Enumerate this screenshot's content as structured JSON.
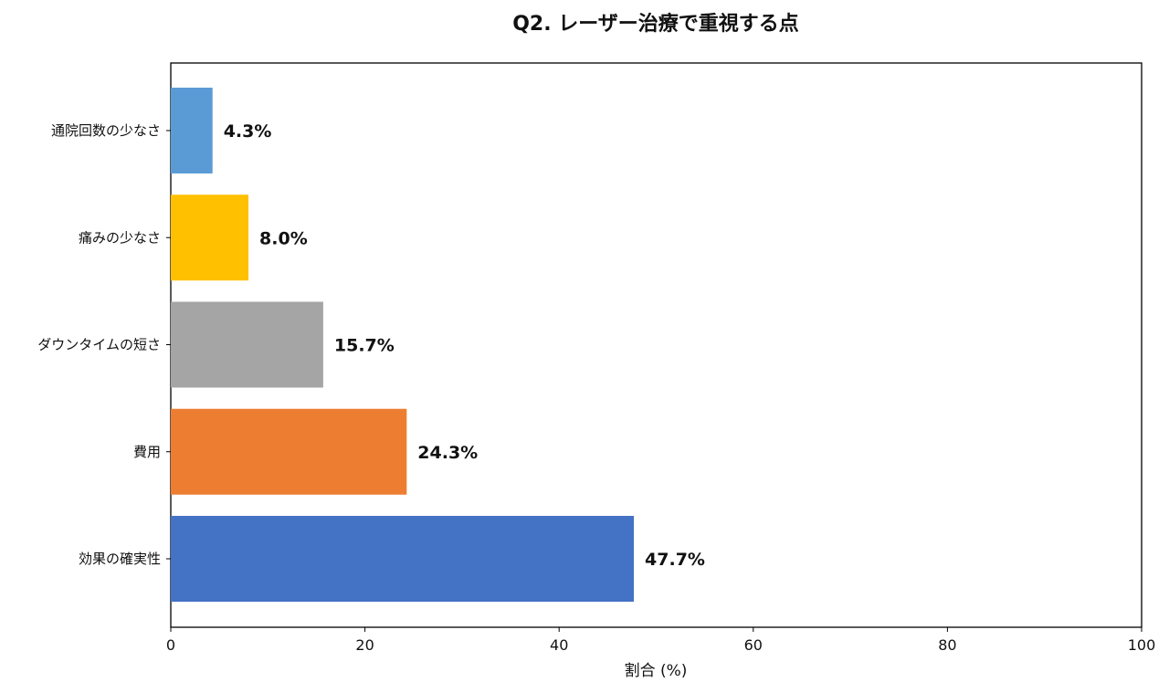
{
  "chart_data": {
    "type": "bar",
    "orientation": "horizontal",
    "title": "Q2. レーザー治療で重視する点",
    "xlabel": "割合 (%)",
    "ylabel": "",
    "xlim": [
      0,
      100
    ],
    "xticks": [
      0,
      20,
      40,
      60,
      80,
      100
    ],
    "xtick_labels": [
      "0",
      "20",
      "40",
      "60",
      "80",
      "100"
    ],
    "grid": false,
    "legend": "none",
    "categories": [
      "通院回数の少なさ",
      "痛みの少なさ",
      "ダウンタイムの短さ",
      "費用",
      "効果の確実性"
    ],
    "values": [
      4.3,
      8.0,
      15.7,
      24.3,
      47.7
    ],
    "data_labels": [
      "4.3%",
      "8.0%",
      "15.7%",
      "24.3%",
      "47.7%"
    ],
    "colors": [
      "#5b9bd5",
      "#ffc000",
      "#a5a5a5",
      "#ed7d31",
      "#4472c4"
    ]
  }
}
